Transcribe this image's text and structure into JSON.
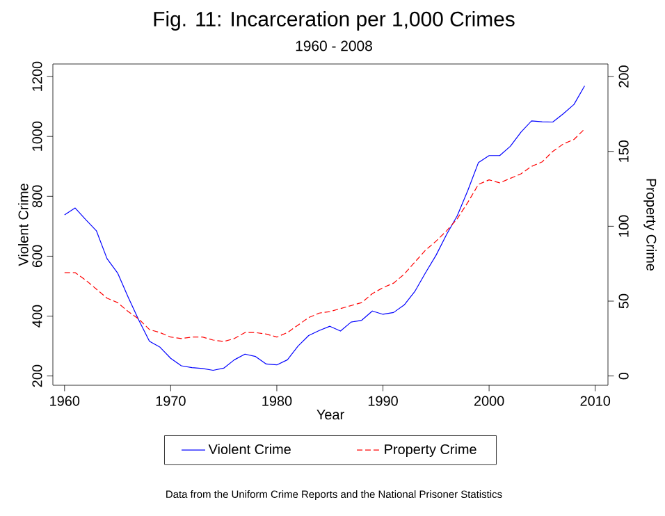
{
  "chart_data": {
    "type": "line",
    "title": "Fig. 11: Incarceration per 1,000 Crimes",
    "subtitle": "1960 - 2008",
    "xlabel": "Year",
    "ylabel": "Violent Crime",
    "y2label": "Property Crime",
    "x": [
      1960,
      1961,
      1962,
      1963,
      1964,
      1965,
      1966,
      1967,
      1968,
      1969,
      1970,
      1971,
      1972,
      1973,
      1974,
      1975,
      1976,
      1977,
      1978,
      1979,
      1980,
      1981,
      1982,
      1983,
      1984,
      1985,
      1986,
      1987,
      1988,
      1989,
      1990,
      1991,
      1992,
      1993,
      1994,
      1995,
      1996,
      1997,
      1998,
      1999,
      2000,
      2001,
      2002,
      2003,
      2004,
      2005,
      2006,
      2007,
      2008,
      2009
    ],
    "series": [
      {
        "name": "Violent Crime",
        "color": "#0000ff",
        "line_style": "solid",
        "values": [
          738,
          761,
          722,
          685,
          592,
          544,
          463,
          386,
          316,
          296,
          259,
          234,
          228,
          225,
          219,
          226,
          254,
          273,
          265,
          240,
          237,
          254,
          300,
          335,
          352,
          366,
          350,
          380,
          386,
          417,
          406,
          412,
          437,
          482,
          544,
          603,
          673,
          735,
          820,
          913,
          936,
          936,
          967,
          1014,
          1052,
          1049,
          1048,
          1076,
          1107,
          1169
        ]
      },
      {
        "name": "Property Crime",
        "color": "#ff0000",
        "line_style": "dashed",
        "axis": "y2",
        "values": [
          69,
          69,
          64,
          58,
          52,
          49,
          43,
          38,
          31,
          29,
          26,
          25,
          26,
          26,
          24,
          23,
          25,
          29,
          29,
          28,
          26,
          29,
          34,
          39,
          42,
          43,
          45,
          47,
          49,
          55,
          59,
          62,
          68,
          76,
          84,
          90,
          97,
          105,
          116,
          128,
          131,
          129,
          132,
          135,
          140,
          143,
          150,
          155,
          158,
          165
        ]
      }
    ],
    "xlim": [
      1958.9,
      2011.2
    ],
    "xticks": [
      1960,
      1970,
      1980,
      1990,
      2000,
      2010
    ],
    "ylim": [
      169,
      1242
    ],
    "yticks": [
      200,
      400,
      600,
      800,
      1000,
      1200
    ],
    "y2lim": [
      -6.2,
      208.4
    ],
    "y2ticks": [
      0,
      50,
      100,
      150,
      200
    ],
    "grid": false,
    "legend": "bottom",
    "marker": "none",
    "annotations": [
      "Data from the Uniform Crime Reports and the National Prisoner Statistics"
    ]
  }
}
